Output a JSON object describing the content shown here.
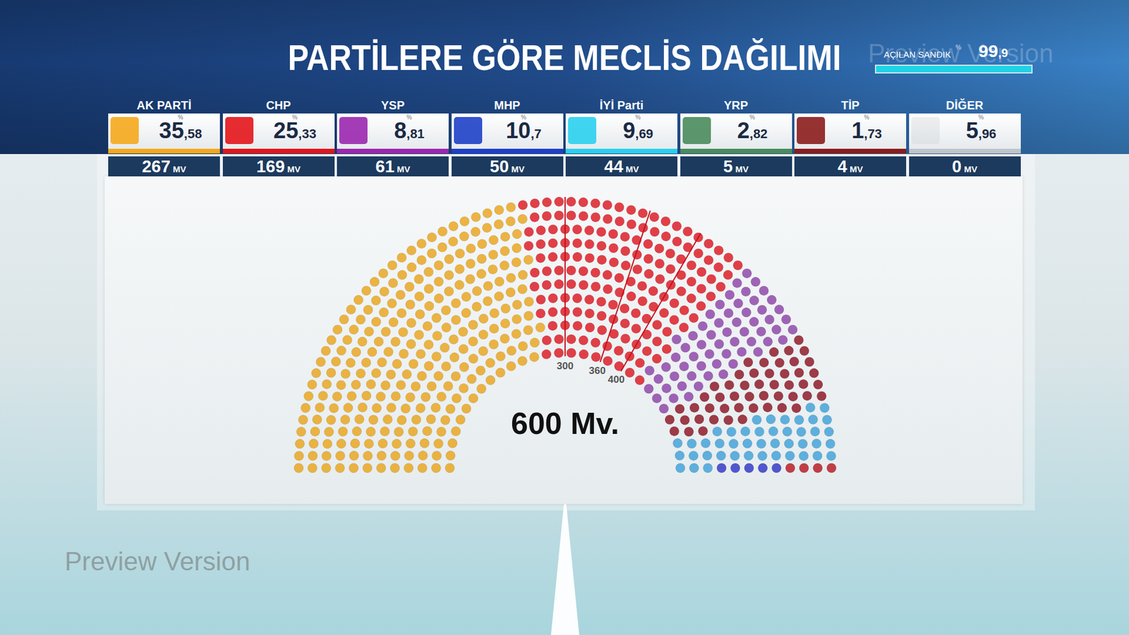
{
  "header": {
    "title": "PARTİLERE GÖRE MECLİS DAĞILIMI",
    "counted": {
      "label": "AÇILAN SANDIK",
      "unit": "%",
      "value": 99.9,
      "value_label": "99,9"
    }
  },
  "percent_unit": "%",
  "watermark": "Preview Version",
  "parties": [
    {
      "name": "AK PARTİ",
      "percent": 35.58,
      "percent_label": "35,58",
      "seats": 267,
      "seats_label": "267 MV",
      "color": "#f5a81c"
    },
    {
      "name": "CHP",
      "percent": 25.33,
      "percent_label": "25,33",
      "seats": 169,
      "seats_label": "169 MV",
      "color": "#e3151b"
    },
    {
      "name": "YSP",
      "percent": 8.81,
      "percent_label": "8,81",
      "seats": 61,
      "seats_label": "61 MV",
      "color": "#9b27af"
    },
    {
      "name": "MHP",
      "percent": 10.7,
      "percent_label": "10,7",
      "seats": 50,
      "seats_label": "50 MV",
      "color": "#1e40c8"
    },
    {
      "name": "İYİ Parti",
      "percent": 9.69,
      "percent_label": "9,69",
      "seats": 44,
      "seats_label": "44 MV",
      "color": "#2ad0ef"
    },
    {
      "name": "YRP",
      "percent": 2.82,
      "percent_label": "2,82",
      "seats": 5,
      "seats_label": "5 MV",
      "color": "#4a8b5c"
    },
    {
      "name": "TİP",
      "percent": 1.73,
      "percent_label": "1,73",
      "seats": 4,
      "seats_label": "4 MV",
      "color": "#8c1c1c"
    },
    {
      "name": "DİĞER",
      "percent": 5.96,
      "percent_label": "5,96",
      "seats": 0,
      "seats_label": "0 MV",
      "color": "#bfc5c9"
    }
  ],
  "chart_data": {
    "type": "parliament",
    "categories": [
      "AK PARTİ",
      "CHP",
      "YSP",
      "MHP",
      "İYİ Parti",
      "YRP",
      "TİP",
      "DİĞER"
    ],
    "values": [
      267,
      169,
      61,
      50,
      44,
      5,
      4,
      0
    ],
    "colors": [
      "#e8a317",
      "#dc111b",
      "#8b3fa6",
      "#8a0e1d",
      "#3b9fd8",
      "#2b2fc4",
      "#b5121b",
      "#bbbbbb"
    ],
    "total_label": "600 Mv.",
    "thresholds": [
      300,
      360,
      400
    ]
  }
}
